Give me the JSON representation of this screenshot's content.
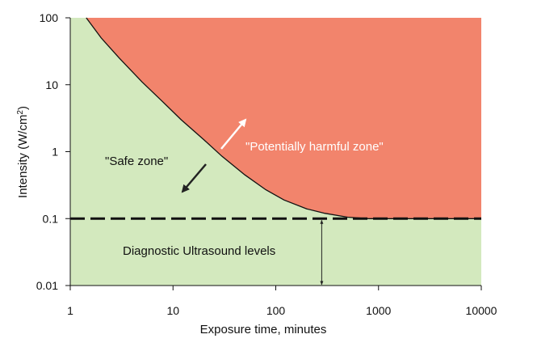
{
  "chart_data": {
    "type": "area",
    "xlabel": "Exposure time, minutes",
    "ylabel_main": "Intensity (W/cm",
    "ylabel_sup": "2",
    "ylabel_end": ")",
    "x_scale": "log",
    "y_scale": "log",
    "xlim": [
      1,
      10000
    ],
    "ylim": [
      0.01,
      100
    ],
    "x_ticks": [
      1,
      10,
      100,
      1000,
      10000
    ],
    "x_tick_labels": [
      "1",
      "10",
      "100",
      "1000",
      "10000"
    ],
    "y_ticks": [
      0.01,
      0.1,
      1,
      10,
      100
    ],
    "y_tick_labels": [
      "0.01",
      "0.1",
      "1",
      "10",
      "100"
    ],
    "grid": false,
    "threshold_curve": {
      "x": [
        1.43,
        2,
        3,
        5,
        8,
        12,
        20,
        30,
        50,
        80,
        120,
        200,
        300,
        500,
        800,
        1000,
        10000
      ],
      "y": [
        100,
        50,
        25,
        11,
        5.5,
        3,
        1.5,
        0.85,
        0.45,
        0.27,
        0.19,
        0.14,
        0.12,
        0.105,
        0.1,
        0.1,
        0.1
      ]
    },
    "diagnostic_level": 0.1,
    "regions": {
      "safe_color": "#d3e9be",
      "harmful_color": "#f2846c"
    },
    "annotations": {
      "safe_zone": "\"Safe zone\"",
      "harmful_zone": "\"Potentially harmful zone\"",
      "diagnostic": "Diagnostic Ultrasound levels"
    },
    "arrows": {
      "harmful_arrow_color": "#ffffff",
      "safe_arrow_color": "#222222"
    }
  }
}
